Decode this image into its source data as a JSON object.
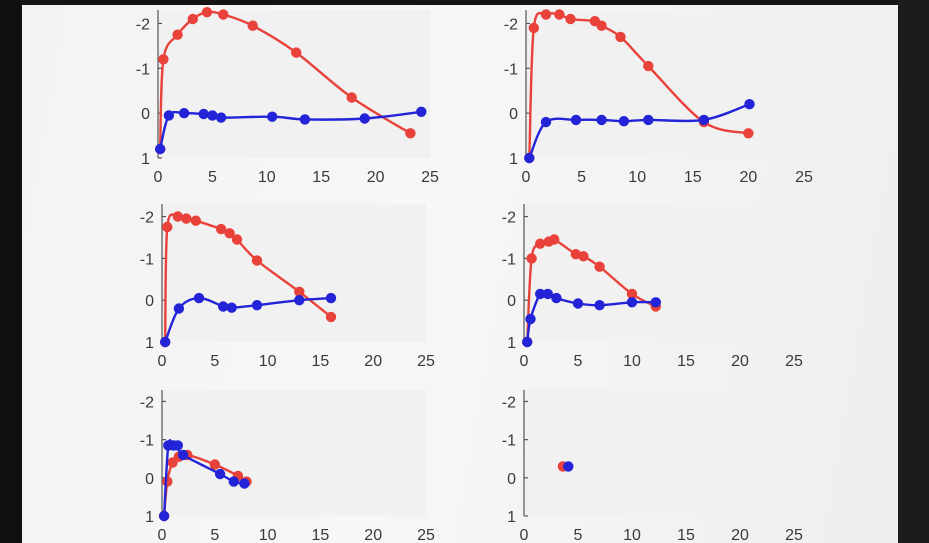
{
  "chart_data": [
    {
      "type": "line",
      "xlim": [
        0,
        25
      ],
      "ylim": [
        -2.3,
        1
      ],
      "y_reversed": true,
      "xticks": [
        "0",
        "5",
        "10",
        "15",
        "20",
        "25"
      ],
      "yticks": [
        "-2",
        "-1",
        "0",
        "1"
      ],
      "series": [
        {
          "color": "#e8423a",
          "x": [
            0.2,
            0.5,
            1.8,
            3.2,
            4.5,
            6,
            8.7,
            12.7,
            17.8,
            23.2
          ],
          "y": [
            0.8,
            -1.2,
            -1.75,
            -2.1,
            -2.25,
            -2.2,
            -1.95,
            -1.35,
            -0.35,
            0.45
          ]
        },
        {
          "color": "#2323d8",
          "x": [
            0.2,
            1,
            2.4,
            4.2,
            5,
            5.8,
            10.5,
            13.5,
            19,
            24.2
          ],
          "y": [
            0.8,
            0.05,
            0,
            0.02,
            0.05,
            0.1,
            0.08,
            0.14,
            0.12,
            -0.03
          ]
        }
      ]
    },
    {
      "type": "line",
      "xlim": [
        0,
        25
      ],
      "ylim": [
        -2.3,
        1
      ],
      "y_reversed": true,
      "xticks": [
        "0",
        "5",
        "10",
        "15",
        "20",
        "25"
      ],
      "yticks": [
        "-2",
        "-1",
        "0",
        "1"
      ],
      "series": [
        {
          "color": "#e8423a",
          "x": [
            0.3,
            0.7,
            1.8,
            3,
            4,
            6.2,
            6.8,
            8.5,
            11,
            16,
            20
          ],
          "y": [
            1,
            -1.9,
            -2.2,
            -2.2,
            -2.1,
            -2.05,
            -1.95,
            -1.7,
            -1.05,
            0.2,
            0.45
          ]
        },
        {
          "color": "#2323d8",
          "x": [
            0.3,
            1.8,
            4.5,
            6.8,
            8.8,
            11,
            16,
            20.1
          ],
          "y": [
            1,
            0.2,
            0.15,
            0.15,
            0.18,
            0.15,
            0.15,
            -0.2
          ]
        }
      ]
    },
    {
      "type": "line",
      "xlim": [
        0,
        25
      ],
      "ylim": [
        -2.3,
        1
      ],
      "y_reversed": true,
      "xticks": [
        "0",
        "5",
        "10",
        "15",
        "20",
        "25"
      ],
      "yticks": [
        "-2",
        "-1",
        "0",
        "1"
      ],
      "series": [
        {
          "color": "#e8423a",
          "x": [
            0.3,
            0.5,
            1.5,
            2.3,
            3.2,
            5.6,
            6.4,
            7.1,
            9,
            13,
            16
          ],
          "y": [
            1,
            -1.75,
            -2,
            -1.95,
            -1.9,
            -1.7,
            -1.6,
            -1.45,
            -0.95,
            -0.2,
            0.4
          ]
        },
        {
          "color": "#2323d8",
          "x": [
            0.3,
            1.6,
            3.5,
            5.8,
            6.6,
            9,
            13,
            16
          ],
          "y": [
            1,
            0.2,
            -0.05,
            0.15,
            0.18,
            0.12,
            0,
            -0.05
          ]
        }
      ]
    },
    {
      "type": "line",
      "xlim": [
        0,
        25
      ],
      "ylim": [
        -2.3,
        1
      ],
      "y_reversed": true,
      "xticks": [
        "0",
        "5",
        "10",
        "15",
        "20",
        "25"
      ],
      "yticks": [
        "-2",
        "-1",
        "0",
        "1"
      ],
      "series": [
        {
          "color": "#e8423a",
          "x": [
            0.3,
            0.7,
            1.5,
            2.3,
            2.8,
            4.8,
            5.5,
            7,
            10,
            12.2
          ],
          "y": [
            1,
            -1,
            -1.35,
            -1.4,
            -1.45,
            -1.1,
            -1.05,
            -0.8,
            -0.15,
            0.15
          ]
        },
        {
          "color": "#2323d8",
          "x": [
            0.3,
            0.6,
            1.5,
            2.2,
            3,
            5,
            7,
            10,
            12.2
          ],
          "y": [
            1,
            0.45,
            -0.15,
            -0.15,
            -0.05,
            0.08,
            0.12,
            0.05,
            0.05
          ]
        }
      ]
    },
    {
      "type": "line",
      "xlim": [
        0,
        25
      ],
      "ylim": [
        -2.3,
        1
      ],
      "y_reversed": true,
      "xticks": [
        "0",
        "5",
        "10",
        "15",
        "20",
        "25"
      ],
      "yticks": [
        "-2",
        "-1",
        "0",
        "1"
      ],
      "series": [
        {
          "color": "#e8423a",
          "x": [
            0.2,
            0.5,
            1,
            1.6,
            2.4,
            5,
            7.2,
            8
          ],
          "y": [
            1,
            0.1,
            -0.4,
            -0.55,
            -0.6,
            -0.35,
            -0.05,
            0.1
          ]
        },
        {
          "color": "#2323d8",
          "x": [
            0.2,
            0.6,
            1.1,
            1.5,
            2,
            5.5,
            6.8,
            7.8
          ],
          "y": [
            1,
            -0.85,
            -0.85,
            -0.85,
            -0.6,
            -0.1,
            0.1,
            0.15
          ]
        }
      ]
    },
    {
      "type": "scatter",
      "xlim": [
        0,
        25
      ],
      "ylim": [
        -2.3,
        1
      ],
      "y_reversed": true,
      "xticks": [
        "0",
        "5",
        "10",
        "15",
        "20",
        "25"
      ],
      "yticks": [
        "-2",
        "-1",
        "0",
        "1"
      ],
      "series": [
        {
          "color": "#e8423a",
          "x": [
            3.6
          ],
          "y": [
            -0.3
          ]
        },
        {
          "color": "#2323d8",
          "x": [
            4.1
          ],
          "y": [
            -0.3
          ]
        }
      ]
    }
  ]
}
